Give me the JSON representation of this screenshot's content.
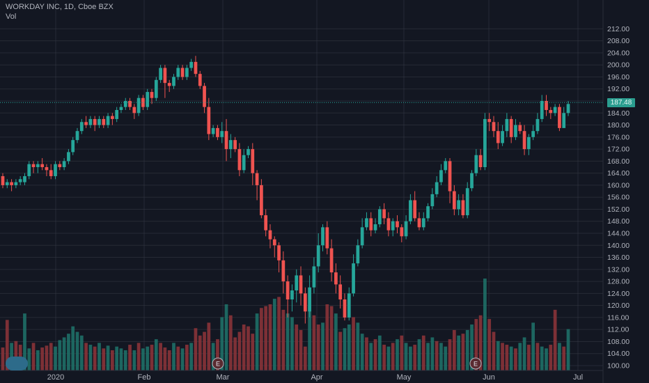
{
  "header": {
    "title": "WORKDAY INC, 1D, Cboe BZX",
    "volume_label": "Vol"
  },
  "last_price_label": "187.48",
  "colors": {
    "up": "#26a69a",
    "down": "#ef5350",
    "background": "#131722",
    "grid": "#363a45"
  },
  "chart_data": {
    "type": "candlestick",
    "title": "WORKDAY INC, 1D, Cboe BZX",
    "ylim": [
      99,
      213
    ],
    "y_ticks": [
      "212.00",
      "208.00",
      "204.00",
      "200.00",
      "196.00",
      "192.00",
      "188.00",
      "184.00",
      "180.00",
      "176.00",
      "172.00",
      "168.00",
      "164.00",
      "160.00",
      "156.00",
      "152.00",
      "148.00",
      "144.00",
      "140.00",
      "136.00",
      "132.00",
      "128.00",
      "124.00",
      "120.00",
      "116.00",
      "112.00",
      "108.00",
      "104.00",
      "100.00"
    ],
    "x_ticks": [
      "2020",
      "Feb",
      "Mar",
      "Apr",
      "May",
      "Jun",
      "Jul"
    ],
    "last_price": 187.48,
    "earnings_markers": [
      "E",
      "E"
    ],
    "candles": [
      [
        163,
        160,
        164,
        159
      ],
      [
        160,
        161,
        162,
        159
      ],
      [
        161,
        160,
        162,
        158
      ],
      [
        160,
        161,
        162,
        159
      ],
      [
        161,
        162,
        163,
        160
      ],
      [
        161,
        163,
        164,
        160
      ],
      [
        163,
        167,
        168,
        162
      ],
      [
        167,
        166,
        168,
        164
      ],
      [
        166,
        167,
        168,
        164
      ],
      [
        167,
        166,
        169,
        165
      ],
      [
        166,
        165,
        167,
        163
      ],
      [
        165,
        163,
        167,
        162
      ],
      [
        163,
        167,
        168,
        162
      ],
      [
        167,
        166,
        168,
        165
      ],
      [
        166,
        168,
        169,
        165
      ],
      [
        168,
        171,
        172,
        167
      ],
      [
        171,
        175,
        176,
        170
      ],
      [
        175,
        178,
        179,
        174
      ],
      [
        178,
        181,
        182,
        177
      ],
      [
        181,
        180,
        183,
        179
      ],
      [
        180,
        182,
        183,
        179
      ],
      [
        182,
        180,
        183,
        178
      ],
      [
        180,
        182,
        183,
        179
      ],
      [
        182,
        180,
        183,
        179
      ],
      [
        180,
        183,
        184,
        179
      ],
      [
        183,
        182,
        184,
        180
      ],
      [
        182,
        185,
        186,
        181
      ],
      [
        185,
        186,
        187,
        184
      ],
      [
        186,
        188,
        189,
        185
      ],
      [
        188,
        186,
        189,
        185
      ],
      [
        186,
        184,
        187,
        182
      ],
      [
        184,
        189,
        190,
        183
      ],
      [
        189,
        186,
        190,
        185
      ],
      [
        186,
        191,
        192,
        185
      ],
      [
        191,
        189,
        192,
        187
      ],
      [
        189,
        195,
        196,
        188
      ],
      [
        195,
        199,
        200,
        194
      ],
      [
        199,
        194,
        200,
        189
      ],
      [
        194,
        193,
        195,
        191
      ],
      [
        193,
        196,
        197,
        192
      ],
      [
        196,
        199,
        200,
        195
      ],
      [
        199,
        196,
        200,
        195
      ],
      [
        196,
        199,
        200,
        195
      ],
      [
        199,
        201,
        202,
        198
      ],
      [
        201,
        197,
        203,
        196
      ],
      [
        197,
        193,
        198,
        192
      ],
      [
        193,
        186,
        194,
        184
      ],
      [
        186,
        177,
        189,
        175
      ],
      [
        177,
        179,
        180,
        176
      ],
      [
        179,
        176,
        180,
        175
      ],
      [
        176,
        178,
        181,
        174
      ],
      [
        178,
        172,
        182,
        168
      ],
      [
        172,
        175,
        177,
        169
      ],
      [
        175,
        172,
        176,
        171
      ],
      [
        172,
        165,
        174,
        163
      ],
      [
        165,
        170,
        172,
        164
      ],
      [
        170,
        172,
        173,
        169
      ],
      [
        172,
        164,
        174,
        160
      ],
      [
        164,
        160,
        165,
        155
      ],
      [
        160,
        150,
        162,
        149
      ],
      [
        150,
        145,
        152,
        143
      ],
      [
        145,
        142,
        147,
        139
      ],
      [
        142,
        140,
        143,
        136
      ],
      [
        140,
        135,
        141,
        131
      ],
      [
        135,
        128,
        138,
        124
      ],
      [
        128,
        122,
        130,
        116
      ],
      [
        122,
        125,
        127,
        118
      ],
      [
        125,
        130,
        132,
        121
      ],
      [
        130,
        124,
        133,
        120
      ],
      [
        124,
        118,
        126,
        114
      ],
      [
        118,
        126,
        130,
        116
      ],
      [
        126,
        133,
        136,
        124
      ],
      [
        133,
        140,
        144,
        131
      ],
      [
        140,
        146,
        147,
        138
      ],
      [
        146,
        139,
        148,
        137
      ],
      [
        139,
        131,
        142,
        128
      ],
      [
        131,
        127,
        134,
        124
      ],
      [
        127,
        122,
        130,
        119
      ],
      [
        122,
        116,
        124,
        115
      ],
      [
        116,
        124,
        126,
        115
      ],
      [
        124,
        134,
        137,
        123
      ],
      [
        134,
        140,
        142,
        133
      ],
      [
        140,
        146,
        149,
        139
      ],
      [
        146,
        149,
        151,
        145
      ],
      [
        149,
        145,
        151,
        143
      ],
      [
        145,
        147,
        149,
        144
      ],
      [
        147,
        152,
        153,
        146
      ],
      [
        152,
        149,
        154,
        147
      ],
      [
        149,
        145,
        151,
        143
      ],
      [
        145,
        148,
        149,
        143
      ],
      [
        148,
        146,
        150,
        144
      ],
      [
        146,
        143,
        147,
        141
      ],
      [
        143,
        148,
        150,
        142
      ],
      [
        148,
        155,
        157,
        147
      ],
      [
        155,
        149,
        158,
        148
      ],
      [
        149,
        146,
        151,
        145
      ],
      [
        146,
        149,
        151,
        145
      ],
      [
        149,
        153,
        154,
        148
      ],
      [
        153,
        157,
        159,
        152
      ],
      [
        157,
        161,
        163,
        156
      ],
      [
        161,
        165,
        167,
        160
      ],
      [
        165,
        168,
        169,
        164
      ],
      [
        168,
        158,
        169,
        154
      ],
      [
        158,
        152,
        160,
        150
      ],
      [
        152,
        155,
        157,
        150
      ],
      [
        155,
        150,
        157,
        149
      ],
      [
        150,
        159,
        161,
        149
      ],
      [
        159,
        164,
        165,
        158
      ],
      [
        164,
        170,
        172,
        163
      ],
      [
        170,
        166,
        172,
        165
      ],
      [
        166,
        182,
        184,
        165
      ],
      [
        182,
        181,
        184,
        178
      ],
      [
        181,
        178,
        183,
        176
      ],
      [
        178,
        174,
        181,
        172
      ],
      [
        174,
        178,
        180,
        173
      ],
      [
        178,
        182,
        184,
        176
      ],
      [
        182,
        176,
        183,
        174
      ],
      [
        176,
        180,
        182,
        175
      ],
      [
        180,
        178,
        181,
        177
      ],
      [
        178,
        172,
        180,
        170
      ],
      [
        172,
        176,
        177,
        170
      ],
      [
        176,
        178,
        180,
        175
      ],
      [
        178,
        182,
        184,
        177
      ],
      [
        182,
        188,
        190,
        181
      ],
      [
        188,
        185,
        190,
        183
      ],
      [
        185,
        184,
        186,
        182
      ],
      [
        184,
        186,
        187,
        183
      ],
      [
        186,
        179,
        187,
        178
      ],
      [
        179,
        184,
        186,
        180
      ],
      [
        184,
        187,
        188,
        183
      ]
    ],
    "volume": [
      {
        "v": 0.25,
        "up": false
      },
      {
        "v": 0.55,
        "up": false
      },
      {
        "v": 0.3,
        "up": true
      },
      {
        "v": 0.32,
        "up": false
      },
      {
        "v": 0.28,
        "up": false
      },
      {
        "v": 0.62,
        "up": true
      },
      {
        "v": 0.24,
        "up": true
      },
      {
        "v": 0.3,
        "up": false
      },
      {
        "v": 0.22,
        "up": true
      },
      {
        "v": 0.25,
        "up": false
      },
      {
        "v": 0.27,
        "up": false
      },
      {
        "v": 0.3,
        "up": false
      },
      {
        "v": 0.26,
        "up": true
      },
      {
        "v": 0.33,
        "up": true
      },
      {
        "v": 0.36,
        "up": true
      },
      {
        "v": 0.4,
        "up": true
      },
      {
        "v": 0.48,
        "up": true
      },
      {
        "v": 0.42,
        "up": true
      },
      {
        "v": 0.38,
        "up": true
      },
      {
        "v": 0.3,
        "up": false
      },
      {
        "v": 0.28,
        "up": true
      },
      {
        "v": 0.26,
        "up": false
      },
      {
        "v": 0.3,
        "up": true
      },
      {
        "v": 0.24,
        "up": false
      },
      {
        "v": 0.27,
        "up": true
      },
      {
        "v": 0.22,
        "up": false
      },
      {
        "v": 0.26,
        "up": true
      },
      {
        "v": 0.24,
        "up": true
      },
      {
        "v": 0.22,
        "up": true
      },
      {
        "v": 0.28,
        "up": false
      },
      {
        "v": 0.22,
        "up": true
      },
      {
        "v": 0.3,
        "up": false
      },
      {
        "v": 0.24,
        "up": true
      },
      {
        "v": 0.26,
        "up": true
      },
      {
        "v": 0.28,
        "up": false
      },
      {
        "v": 0.34,
        "up": true
      },
      {
        "v": 0.3,
        "up": false
      },
      {
        "v": 0.25,
        "up": false
      },
      {
        "v": 0.22,
        "up": false
      },
      {
        "v": 0.3,
        "up": true
      },
      {
        "v": 0.26,
        "up": false
      },
      {
        "v": 0.24,
        "up": true
      },
      {
        "v": 0.28,
        "up": false
      },
      {
        "v": 0.3,
        "up": true
      },
      {
        "v": 0.46,
        "up": false
      },
      {
        "v": 0.38,
        "up": false
      },
      {
        "v": 0.42,
        "up": false
      },
      {
        "v": 0.52,
        "up": false
      },
      {
        "v": 0.3,
        "up": true
      },
      {
        "v": 0.34,
        "up": false
      },
      {
        "v": 0.58,
        "up": true
      },
      {
        "v": 0.72,
        "up": true
      },
      {
        "v": 0.6,
        "up": false
      },
      {
        "v": 0.36,
        "up": false
      },
      {
        "v": 0.42,
        "up": false
      },
      {
        "v": 0.5,
        "up": false
      },
      {
        "v": 0.48,
        "up": false
      },
      {
        "v": 0.4,
        "up": false
      },
      {
        "v": 0.62,
        "up": true
      },
      {
        "v": 0.68,
        "up": false
      },
      {
        "v": 0.7,
        "up": false
      },
      {
        "v": 0.72,
        "up": false
      },
      {
        "v": 0.78,
        "up": true
      },
      {
        "v": 0.8,
        "up": false
      },
      {
        "v": 0.66,
        "up": false
      },
      {
        "v": 0.62,
        "up": true
      },
      {
        "v": 0.58,
        "up": true
      },
      {
        "v": 0.5,
        "up": false
      },
      {
        "v": 0.44,
        "up": false
      },
      {
        "v": 0.26,
        "up": false
      },
      {
        "v": 0.7,
        "up": true
      },
      {
        "v": 0.6,
        "up": false
      },
      {
        "v": 0.5,
        "up": false
      },
      {
        "v": 0.52,
        "up": true
      },
      {
        "v": 0.72,
        "up": false
      },
      {
        "v": 0.7,
        "up": false
      },
      {
        "v": 0.62,
        "up": true
      },
      {
        "v": 0.42,
        "up": false
      },
      {
        "v": 0.46,
        "up": true
      },
      {
        "v": 0.5,
        "up": true
      },
      {
        "v": 0.58,
        "up": false
      },
      {
        "v": 0.52,
        "up": true
      },
      {
        "v": 0.4,
        "up": true
      },
      {
        "v": 0.36,
        "up": false
      },
      {
        "v": 0.3,
        "up": true
      },
      {
        "v": 0.34,
        "up": false
      },
      {
        "v": 0.38,
        "up": true
      },
      {
        "v": 0.28,
        "up": false
      },
      {
        "v": 0.26,
        "up": true
      },
      {
        "v": 0.3,
        "up": false
      },
      {
        "v": 0.34,
        "up": true
      },
      {
        "v": 0.38,
        "up": false
      },
      {
        "v": 0.3,
        "up": true
      },
      {
        "v": 0.26,
        "up": true
      },
      {
        "v": 0.28,
        "up": false
      },
      {
        "v": 0.34,
        "up": true
      },
      {
        "v": 0.38,
        "up": false
      },
      {
        "v": 0.3,
        "up": true
      },
      {
        "v": 0.36,
        "up": true
      },
      {
        "v": 0.32,
        "up": false
      },
      {
        "v": 0.3,
        "up": true
      },
      {
        "v": 0.26,
        "up": true
      },
      {
        "v": 0.34,
        "up": false
      },
      {
        "v": 0.44,
        "up": false
      },
      {
        "v": 0.38,
        "up": true
      },
      {
        "v": 0.4,
        "up": false
      },
      {
        "v": 0.44,
        "up": true
      },
      {
        "v": 0.5,
        "up": true
      },
      {
        "v": 0.56,
        "up": false
      },
      {
        "v": 0.6,
        "up": false
      },
      {
        "v": 1.0,
        "up": true
      },
      {
        "v": 0.56,
        "up": false
      },
      {
        "v": 0.42,
        "up": false
      },
      {
        "v": 0.32,
        "up": true
      },
      {
        "v": 0.3,
        "up": false
      },
      {
        "v": 0.28,
        "up": false
      },
      {
        "v": 0.26,
        "up": true
      },
      {
        "v": 0.24,
        "up": false
      },
      {
        "v": 0.3,
        "up": true
      },
      {
        "v": 0.36,
        "up": true
      },
      {
        "v": 0.28,
        "up": false
      },
      {
        "v": 0.52,
        "up": true
      },
      {
        "v": 0.3,
        "up": false
      },
      {
        "v": 0.26,
        "up": true
      },
      {
        "v": 0.24,
        "up": true
      },
      {
        "v": 0.28,
        "up": false
      },
      {
        "v": 0.66,
        "up": false
      },
      {
        "v": 0.3,
        "up": true
      },
      {
        "v": 0.26,
        "up": false
      },
      {
        "v": 0.45,
        "up": true
      }
    ]
  }
}
